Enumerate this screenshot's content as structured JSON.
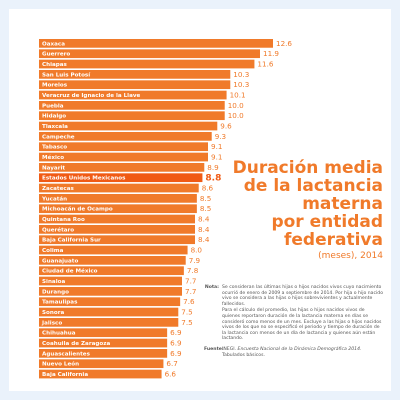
{
  "title": {
    "main": [
      "Duración media",
      "de la lactancia",
      "materna",
      "por entidad",
      "federativa"
    ],
    "units": "(meses), 2014"
  },
  "notes": {
    "label": "Nota:",
    "items": [
      "Se consideran las últimas hijas o hijos nacidos vivos cuyo nacimiento ocurrió de enero de 2009 a septiembre de 2014. Por hija o hijo nacido vivo se considera a las hijas o hijos sobrevivientes y actualmente fallecidos.",
      "Para el cálculo del promedio, las hijas o hijos nacidos vivos de quienes reportaron duración de la lactancia materna en días se consideró como menos de un mes. Excluye a las hijas o hijos nacidos vivos de los que no se especificó el periodo y tiempo de duración de la lactancia con menos de un día de lactancia y quienes aún están lactando."
    ]
  },
  "source": {
    "label": "Fuente:",
    "prefix": "INEGI.",
    "reference": "Encuesta Nacional de la Dinámica Demográfica 2014.",
    "suffix": "Tabulados básicos."
  },
  "colors": {
    "bar": "#f07a2a",
    "highlight": "#f05a14",
    "value_text": "#f07a2a",
    "label_text": "#ffffff"
  },
  "chart_data": {
    "type": "bar",
    "orientation": "horizontal",
    "categories": [
      "Oaxaca",
      "Guerrero",
      "Chiapas",
      "San Luis Potosí",
      "Morelos",
      "Veracruz de Ignacio de la Llave",
      "Puebla",
      "Hidalgo",
      "Tlaxcala",
      "Campeche",
      "Tabasco",
      "México",
      "Nayarit",
      "Estados Unidos Mexicanos",
      "Zacatecas",
      "Yucatán",
      "Michoacán de Ocampo",
      "Quintana Roo",
      "Querétaro",
      "Baja California Sur",
      "Colima",
      "Guanajuato",
      "Ciudad de México",
      "Sinaloa",
      "Durango",
      "Tamaulipas",
      "Sonora",
      "Jalisco",
      "Chihuahua",
      "Coahuila de Zaragoza",
      "Aguascalientes",
      "Nuevo León",
      "Baja California"
    ],
    "values": [
      12.6,
      11.9,
      11.6,
      10.3,
      10.3,
      10.1,
      10.0,
      10.0,
      9.6,
      9.3,
      9.1,
      9.1,
      8.9,
      8.8,
      8.6,
      8.5,
      8.5,
      8.4,
      8.4,
      8.4,
      8.0,
      7.9,
      7.8,
      7.7,
      7.7,
      7.6,
      7.5,
      7.5,
      6.9,
      6.9,
      6.9,
      6.7,
      6.6
    ],
    "value_labels": [
      "12.6",
      "11.9",
      "11.6",
      "10.3",
      "10.3",
      "10.1",
      "10.0",
      "10.0",
      "9.6",
      "9.3",
      "9.1",
      "9.1",
      "8.9",
      "8.8",
      "8.6",
      "8.5",
      "8.5",
      "8.4",
      "8.4",
      "8.4",
      "8.0",
      "7.9",
      "7.8",
      "7.7",
      "7.7",
      "7.6",
      "7.5",
      "7.5",
      "6.9",
      "6.9",
      "6.9",
      "6.7",
      "6.6"
    ],
    "highlight_category": "Estados Unidos Mexicanos",
    "xlim": [
      0,
      12.6
    ]
  }
}
